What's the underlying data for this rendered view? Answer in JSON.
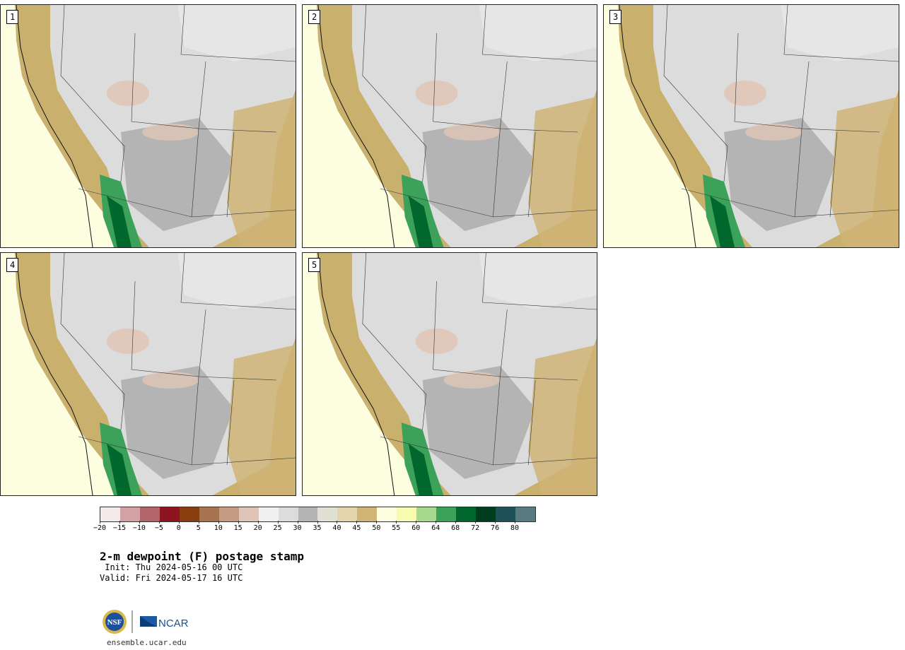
{
  "panels": [
    {
      "label": "1"
    },
    {
      "label": "2"
    },
    {
      "label": "3"
    },
    {
      "label": "4"
    },
    {
      "label": "5"
    }
  ],
  "colorbar": {
    "colors": [
      "#f5eaea",
      "#d3a0a3",
      "#b3636a",
      "#8c1420",
      "#8a3e10",
      "#a8734f",
      "#c59c82",
      "#e0c5b7",
      "#f0f0f0",
      "#dcdcdc",
      "#b4b4b4",
      "#e0e0d5",
      "#e3d4ad",
      "#cfb475",
      "#fdfde0",
      "#f6fbb0",
      "#a5d98d",
      "#3ca25a",
      "#00682c",
      "#003c1e",
      "#1f5258",
      "#577b80"
    ],
    "ticks": [
      "−20",
      "−15",
      "−10",
      "−5",
      "0",
      "5",
      "10",
      "15",
      "20",
      "25",
      "30",
      "35",
      "40",
      "45",
      "50",
      "55",
      "60",
      "64",
      "68",
      "72",
      "76",
      "80"
    ]
  },
  "title": "2-m dewpoint (F) postage stamp",
  "init": " Init: Thu 2024-05-16 00 UTC",
  "valid": "Valid: Fri 2024-05-17 16 UTC",
  "logos": {
    "nsf": "NSF",
    "ncar": "NCAR"
  },
  "url": "ensemble.ucar.edu",
  "colors": {
    "ocean": "#fdfde0",
    "coast": "#c9b06d",
    "dry": "#b4b4b4",
    "moist": "#3ca25a",
    "very_moist": "#00682c"
  }
}
